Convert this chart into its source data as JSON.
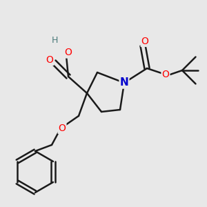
{
  "background_color": "#e8e8e8",
  "bond_color": "#1a1a1a",
  "atom_colors": {
    "O": "#ff0000",
    "N": "#0000cc",
    "C": "#1a1a1a",
    "H": "#4a7a7a"
  },
  "figsize": [
    3.0,
    3.0
  ],
  "dpi": 100,
  "ring": {
    "Nx": 0.6,
    "Ny": 0.6,
    "C2x": 0.47,
    "C2y": 0.65,
    "C3x": 0.42,
    "C3y": 0.55,
    "C4x": 0.49,
    "C4y": 0.46,
    "C5x": 0.58,
    "C5y": 0.47
  },
  "boc": {
    "BocCx": 0.71,
    "BocCy": 0.67,
    "BocOdx": 0.69,
    "BocOdy": 0.78,
    "BocO2x": 0.8,
    "BocO2y": 0.64,
    "TBCx": 0.88,
    "TBCy": 0.66
  },
  "cooh": {
    "CaCx": 0.33,
    "CaCy": 0.63,
    "CaO1x": 0.26,
    "CaO1y": 0.7,
    "CaO2x": 0.32,
    "CaO2y": 0.73
  },
  "benzyloxy": {
    "CH2x": 0.38,
    "CH2y": 0.44,
    "Ox": 0.3,
    "Oy": 0.38,
    "BCH2x": 0.25,
    "BCH2y": 0.3,
    "BzCx": 0.17,
    "BzCy": 0.17,
    "Br": 0.1
  }
}
